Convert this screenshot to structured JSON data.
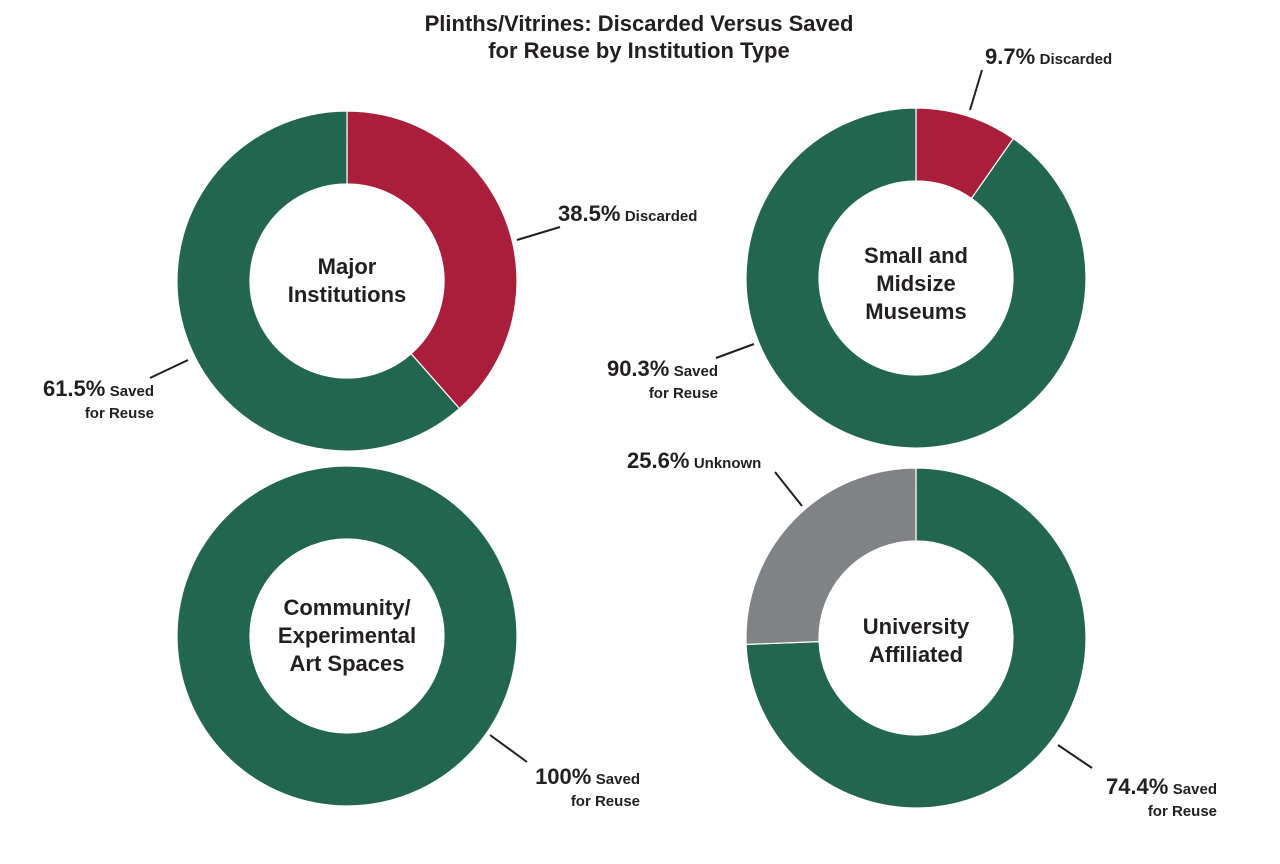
{
  "chart_data": [
    {
      "type": "pie",
      "title": "Plinths/Vitrines: Discarded Versus Saved for Reuse by Institution Type",
      "name": "Major Institutions",
      "slices": [
        {
          "label": "Discarded",
          "value": 38.5,
          "pct_text": "38.5%",
          "text1": "Discarded",
          "text2": "",
          "color": "#a91e3a"
        },
        {
          "label": "Saved for Reuse",
          "value": 61.5,
          "pct_text": "61.5%",
          "text1": "Saved",
          "text2": "for Reuse",
          "color": "#236650"
        }
      ]
    },
    {
      "type": "pie",
      "name": "Small and Midsize Museums",
      "slices": [
        {
          "label": "Discarded",
          "value": 9.7,
          "pct_text": "9.7%",
          "text1": "Discarded",
          "text2": "",
          "color": "#a91e3a"
        },
        {
          "label": "Saved for Reuse",
          "value": 90.3,
          "pct_text": "90.3%",
          "text1": "Saved",
          "text2": "for Reuse",
          "color": "#236650"
        }
      ]
    },
    {
      "type": "pie",
      "name": "Community/ Experimental Art Spaces",
      "slices": [
        {
          "label": "Saved for Reuse",
          "value": 100,
          "pct_text": "100%",
          "text1": "Saved",
          "text2": "for Reuse",
          "color": "#236650"
        }
      ]
    },
    {
      "type": "pie",
      "name": "University Affiliated",
      "slices": [
        {
          "label": "Saved for Reuse",
          "value": 74.4,
          "pct_text": "74.4%",
          "text1": "Saved",
          "text2": "for Reuse",
          "color": "#236650"
        },
        {
          "label": "Unknown",
          "value": 25.6,
          "pct_text": "25.6%",
          "text1": "Unknown",
          "text2": "",
          "color": "#808285"
        }
      ]
    }
  ],
  "title_line1": "Plinths/Vitrines: Discarded Versus Saved",
  "title_line2": "for Reuse by Institution Type",
  "centers": {
    "c0": [
      "Major",
      "Institutions"
    ],
    "c1": [
      "Small and",
      "Midsize",
      "Museums"
    ],
    "c2": [
      "Community/",
      "Experimental",
      "Art Spaces"
    ],
    "c3": [
      "University",
      "Affiliated"
    ]
  }
}
